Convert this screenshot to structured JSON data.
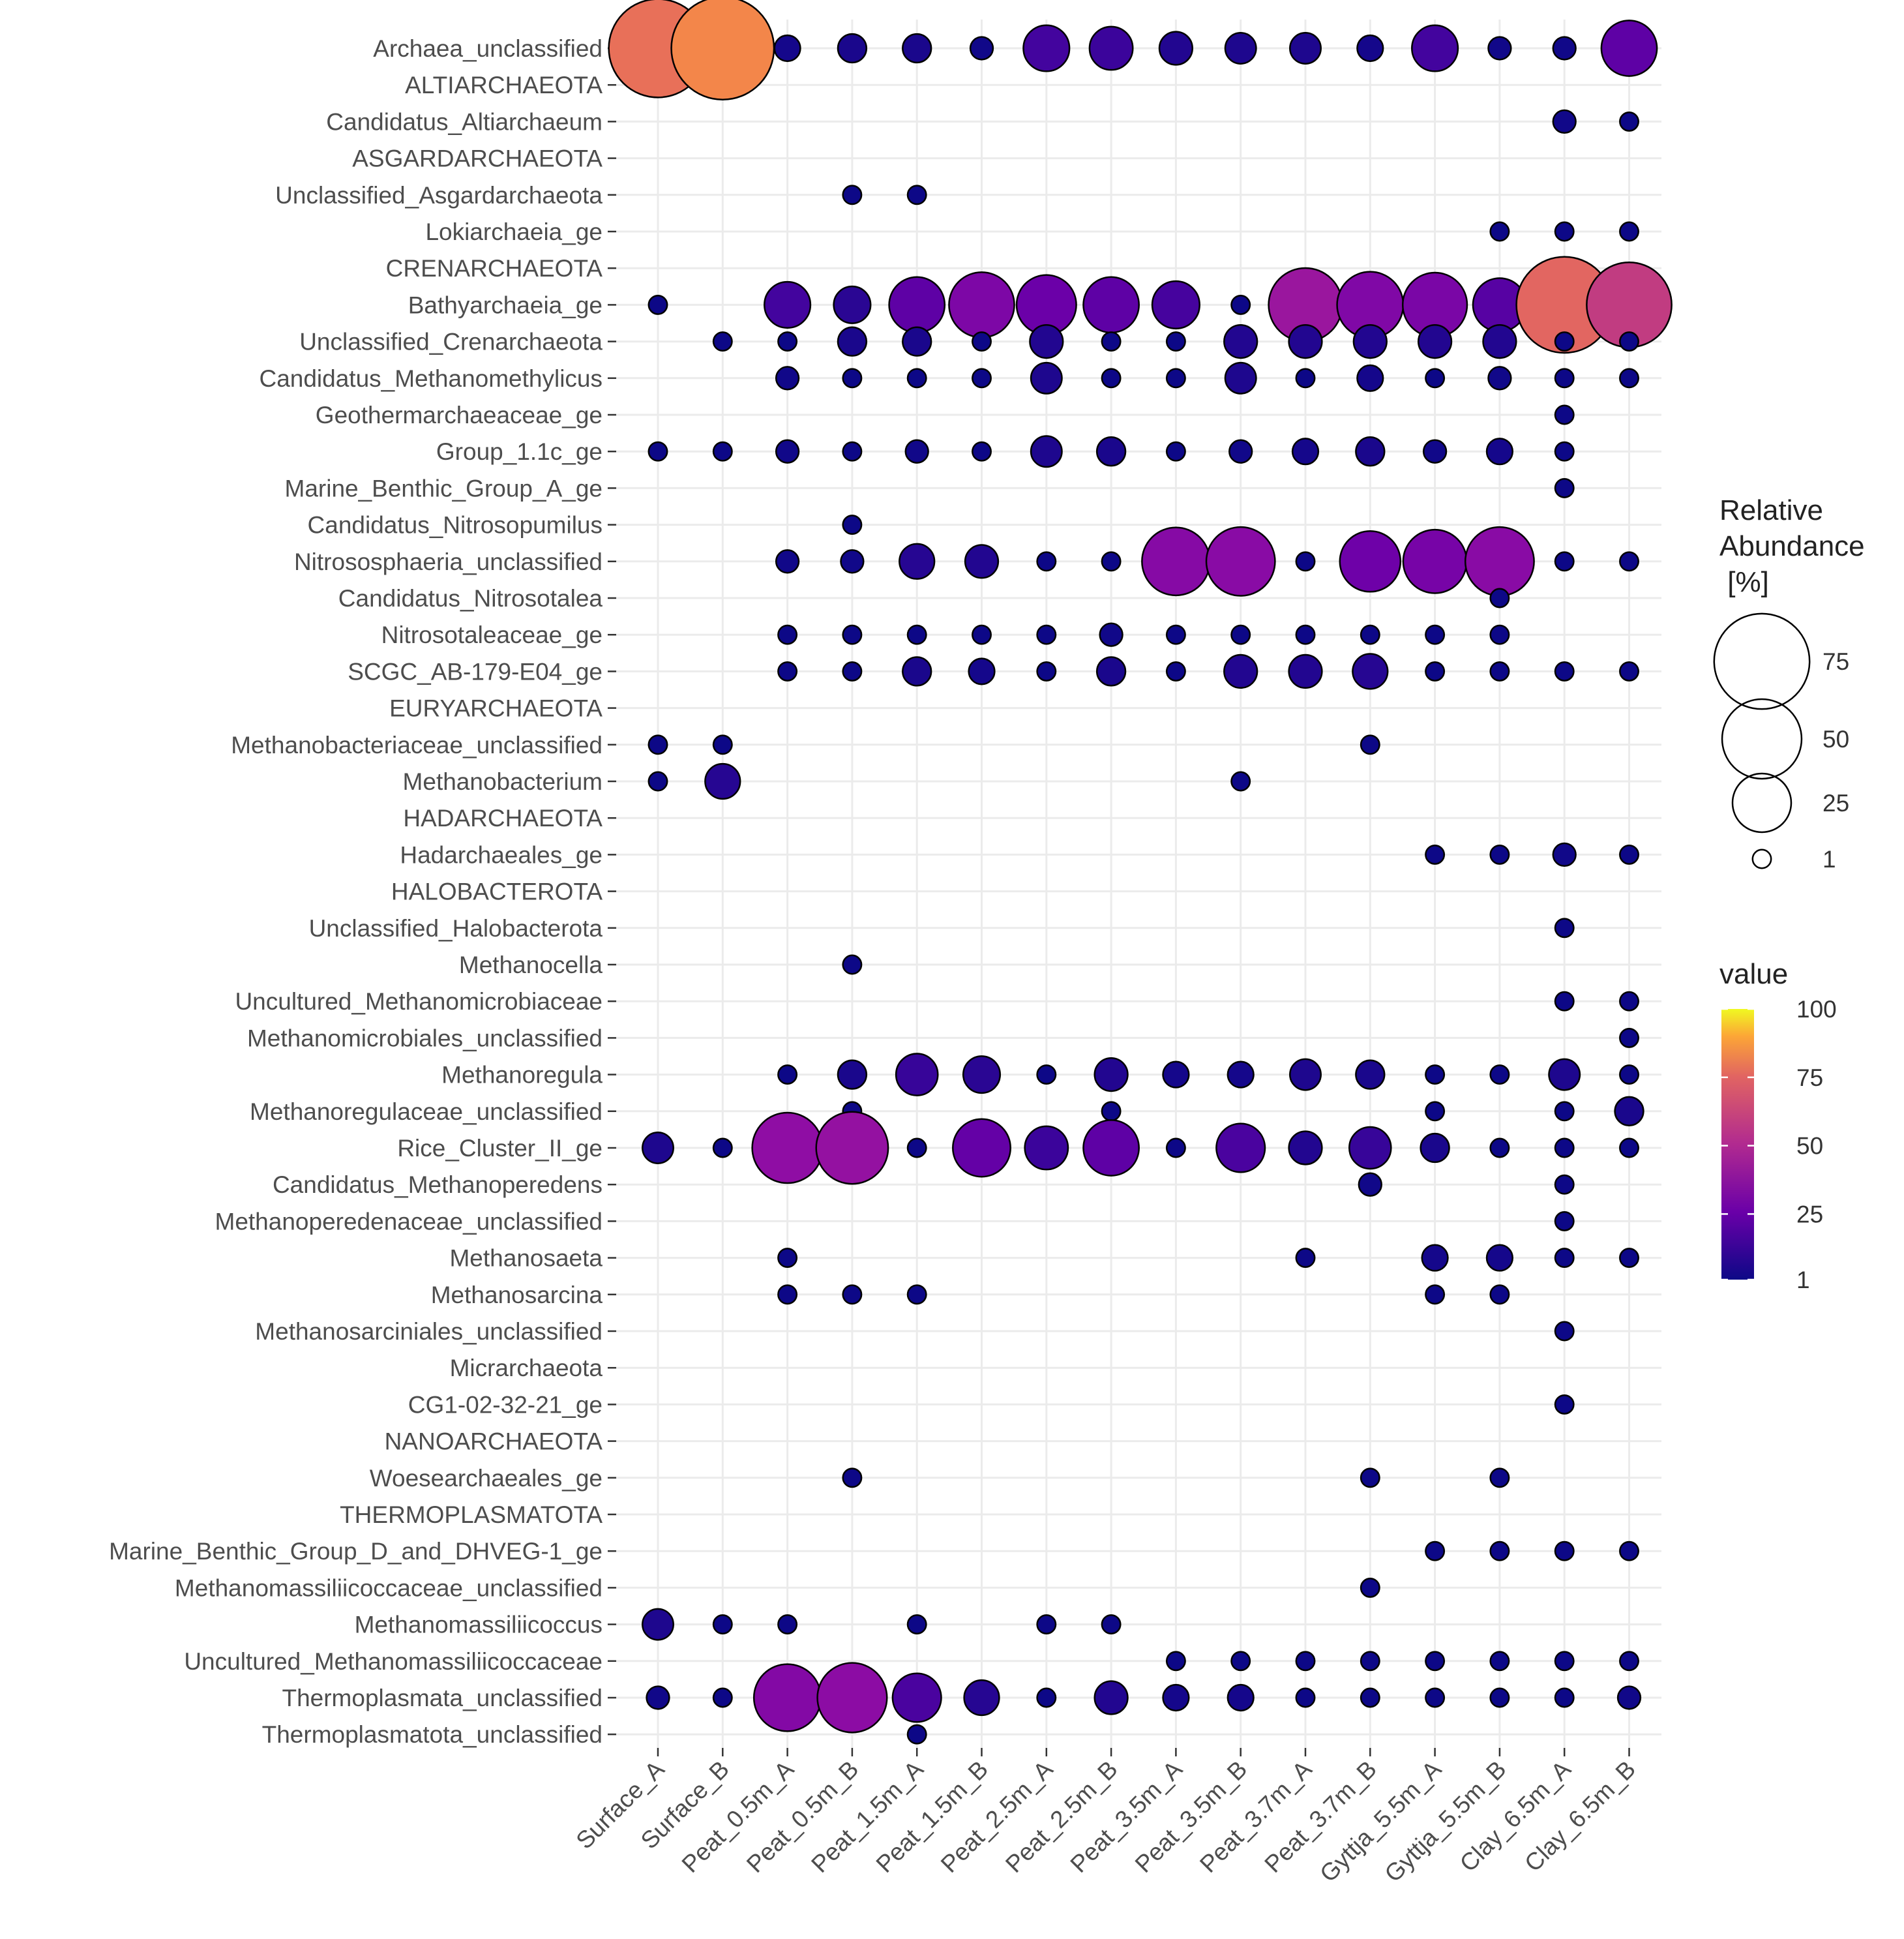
{
  "chart_data": {
    "type": "scatter",
    "subtype": "bubble",
    "x_categories": [
      "Surface_A",
      "Surface_B",
      "Peat_0.5m_A",
      "Peat_0.5m_B",
      "Peat_1.5m_A",
      "Peat_1.5m_B",
      "Peat_2.5m_A",
      "Peat_2.5m_B",
      "Peat_3.5m_A",
      "Peat_3.5m_B",
      "Peat_3.7m_A",
      "Peat_3.7m_B",
      "Gyttja_5.5m_A",
      "Gyttja_5.5m_B",
      "Clay_6.5m_A",
      "Clay_6.5m_B"
    ],
    "y_categories": [
      "Archaea_unclassified",
      "ALTIARCHAEOTA",
      "Candidatus_Altiarchaeum",
      "ASGARDARCHAEOTA",
      "Unclassified_Asgardarchaeota",
      "Lokiarchaeia_ge",
      "CRENARCHAEOTA",
      "Bathyarchaeia_ge",
      "Unclassified_Crenarchaeota",
      "Candidatus_Methanomethylicus",
      "Geothermarchaeaceae_ge",
      "Group_1.1c_ge",
      "Marine_Benthic_Group_A_ge",
      "Candidatus_Nitrosopumilus",
      "Nitrososphaeria_unclassified",
      "Candidatus_Nitrosotalea",
      "Nitrosotaleaceae_ge",
      "SCGC_AB-179-E04_ge",
      "EURYARCHAEOTA",
      "Methanobacteriaceae_unclassified",
      "Methanobacterium",
      "HADARCHAEOTA",
      "Hadarchaeales_ge",
      "HALOBACTEROTA",
      "Unclassified_Halobacterota",
      "Methanocella",
      "Uncultured_Methanomicrobiaceae",
      "Methanomicrobiales_unclassified",
      "Methanoregula",
      "Methanoregulaceae_unclassified",
      "Rice_Cluster_II_ge",
      "Candidatus_Methanoperedens",
      "Methanoperedenaceae_unclassified",
      "Methanosaeta",
      "Methanosarcina",
      "Methanosarciniales_unclassified",
      "Micrarchaeota",
      "CG1-02-32-21_ge",
      "NANOARCHAEOTA",
      "Woesearchaeales_ge",
      "THERMOPLASMATOTA",
      "Marine_Benthic_Group_D_and_DHVEG-1_ge",
      "Methanomassiliicoccaceae_unclassified",
      "Methanomassiliicoccus",
      "Uncultured_Methanomassiliicoccaceae",
      "Thermoplasmata_unclassified",
      "Thermoplasmatota_unclassified"
    ],
    "points": [
      [
        "Archaea_unclassified",
        [
          [
            0,
            80
          ],
          [
            1,
            88
          ],
          [
            2,
            3
          ],
          [
            3,
            4
          ],
          [
            4,
            4
          ],
          [
            5,
            2
          ],
          [
            6,
            14
          ],
          [
            7,
            12
          ],
          [
            8,
            6
          ],
          [
            9,
            5
          ],
          [
            10,
            5
          ],
          [
            11,
            3
          ],
          [
            12,
            14
          ],
          [
            13,
            2
          ],
          [
            14,
            2
          ],
          [
            15,
            22
          ]
        ]
      ],
      [
        "Candidatus_Altiarchaeum",
        [
          [
            14,
            2
          ],
          [
            15,
            1
          ]
        ]
      ],
      [
        "Unclassified_Asgardarchaeota",
        [
          [
            3,
            1
          ],
          [
            4,
            1
          ]
        ]
      ],
      [
        "Lokiarchaeia_ge",
        [
          [
            13,
            1
          ],
          [
            14,
            1
          ],
          [
            15,
            1
          ]
        ]
      ],
      [
        "Bathyarchaeia_ge",
        [
          [
            0,
            1
          ],
          [
            2,
            14
          ],
          [
            3,
            8
          ],
          [
            4,
            22
          ],
          [
            5,
            32
          ],
          [
            6,
            26
          ],
          [
            7,
            22
          ],
          [
            8,
            15
          ],
          [
            9,
            1
          ],
          [
            10,
            42
          ],
          [
            11,
            33
          ],
          [
            12,
            31
          ],
          [
            13,
            20
          ],
          [
            14,
            76
          ],
          [
            15,
            58
          ]
        ]
      ],
      [
        "Unclassified_Crenarchaeota",
        [
          [
            1,
            1
          ],
          [
            2,
            1
          ],
          [
            3,
            4
          ],
          [
            4,
            4
          ],
          [
            5,
            1
          ],
          [
            6,
            6
          ],
          [
            7,
            1
          ],
          [
            8,
            1
          ],
          [
            9,
            6
          ],
          [
            10,
            6
          ],
          [
            11,
            6
          ],
          [
            12,
            6
          ],
          [
            13,
            6
          ],
          [
            14,
            1
          ],
          [
            15,
            1
          ]
        ]
      ],
      [
        "Candidatus_Methanomethylicus",
        [
          [
            2,
            2
          ],
          [
            3,
            1
          ],
          [
            4,
            1
          ],
          [
            5,
            1
          ],
          [
            6,
            5
          ],
          [
            7,
            1
          ],
          [
            8,
            1
          ],
          [
            9,
            5
          ],
          [
            10,
            1
          ],
          [
            11,
            3
          ],
          [
            12,
            1
          ],
          [
            13,
            2
          ],
          [
            14,
            1
          ],
          [
            15,
            1
          ]
        ]
      ],
      [
        "Geothermarchaeaceae_ge",
        [
          [
            14,
            1
          ]
        ]
      ],
      [
        "Group_1.1c_ge",
        [
          [
            0,
            1
          ],
          [
            1,
            1
          ],
          [
            2,
            2
          ],
          [
            3,
            1
          ],
          [
            4,
            2
          ],
          [
            5,
            1
          ],
          [
            6,
            5
          ],
          [
            7,
            4
          ],
          [
            8,
            1
          ],
          [
            9,
            2
          ],
          [
            10,
            3
          ],
          [
            11,
            4
          ],
          [
            12,
            2
          ],
          [
            13,
            3
          ],
          [
            14,
            1
          ]
        ]
      ],
      [
        "Marine_Benthic_Group_A_ge",
        [
          [
            14,
            1
          ]
        ]
      ],
      [
        "Candidatus_Nitrosopumilus",
        [
          [
            3,
            1
          ]
        ]
      ],
      [
        "Nitrososphaeria_unclassified",
        [
          [
            2,
            2
          ],
          [
            3,
            2
          ],
          [
            4,
            7
          ],
          [
            5,
            6
          ],
          [
            6,
            1
          ],
          [
            7,
            1
          ],
          [
            8,
            35
          ],
          [
            9,
            36
          ],
          [
            10,
            1
          ],
          [
            11,
            27
          ],
          [
            12,
            30
          ],
          [
            13,
            36
          ],
          [
            14,
            1
          ],
          [
            15,
            1
          ]
        ]
      ],
      [
        "Candidatus_Nitrosotalea",
        [
          [
            13,
            1
          ]
        ]
      ],
      [
        "Nitrosotaleaceae_ge",
        [
          [
            2,
            1
          ],
          [
            3,
            1
          ],
          [
            4,
            1
          ],
          [
            5,
            1
          ],
          [
            6,
            1
          ],
          [
            7,
            2
          ],
          [
            8,
            1
          ],
          [
            9,
            1
          ],
          [
            10,
            1
          ],
          [
            11,
            1
          ],
          [
            12,
            1
          ],
          [
            13,
            1
          ]
        ]
      ],
      [
        "SCGC_AB-179-E04_ge",
        [
          [
            2,
            1
          ],
          [
            3,
            1
          ],
          [
            4,
            4
          ],
          [
            5,
            3
          ],
          [
            6,
            1
          ],
          [
            7,
            4
          ],
          [
            8,
            1
          ],
          [
            9,
            6
          ],
          [
            10,
            6
          ],
          [
            11,
            7
          ],
          [
            12,
            1
          ],
          [
            13,
            1
          ],
          [
            14,
            1
          ],
          [
            15,
            1
          ]
        ]
      ],
      [
        "Methanobacteriaceae_unclassified",
        [
          [
            0,
            1
          ],
          [
            1,
            1
          ],
          [
            11,
            1
          ]
        ]
      ],
      [
        "Methanobacterium",
        [
          [
            0,
            1
          ],
          [
            1,
            7
          ],
          [
            9,
            1
          ]
        ]
      ],
      [
        "Hadarchaeales_ge",
        [
          [
            12,
            1
          ],
          [
            13,
            1
          ],
          [
            14,
            2
          ],
          [
            15,
            1
          ]
        ]
      ],
      [
        "Unclassified_Halobacterota",
        [
          [
            14,
            1
          ]
        ]
      ],
      [
        "Methanocella",
        [
          [
            3,
            1
          ]
        ]
      ],
      [
        "Uncultured_Methanomicrobiaceae",
        [
          [
            14,
            1
          ],
          [
            15,
            1
          ]
        ]
      ],
      [
        "Methanomicrobiales_unclassified",
        [
          [
            15,
            1
          ]
        ]
      ],
      [
        "Methanoregula",
        [
          [
            2,
            1
          ],
          [
            3,
            4
          ],
          [
            4,
            11
          ],
          [
            5,
            8
          ],
          [
            6,
            1
          ],
          [
            7,
            6
          ],
          [
            8,
            3
          ],
          [
            9,
            3
          ],
          [
            10,
            5
          ],
          [
            11,
            4
          ],
          [
            12,
            1
          ],
          [
            13,
            1
          ],
          [
            14,
            5
          ],
          [
            15,
            1
          ]
        ]
      ],
      [
        "Methanoregulaceae_unclassified",
        [
          [
            3,
            1
          ],
          [
            7,
            1
          ],
          [
            12,
            1
          ],
          [
            14,
            1
          ],
          [
            15,
            4
          ]
        ]
      ],
      [
        "Rice_Cluster_II_ge",
        [
          [
            0,
            5
          ],
          [
            1,
            1
          ],
          [
            2,
            38
          ],
          [
            3,
            40
          ],
          [
            4,
            1
          ],
          [
            5,
            24
          ],
          [
            6,
            12
          ],
          [
            7,
            22
          ],
          [
            8,
            1
          ],
          [
            9,
            16
          ],
          [
            10,
            6
          ],
          [
            11,
            11
          ],
          [
            12,
            4
          ],
          [
            13,
            1
          ],
          [
            14,
            1
          ],
          [
            15,
            1
          ]
        ]
      ],
      [
        "Candidatus_Methanoperedens",
        [
          [
            11,
            2
          ],
          [
            14,
            1
          ]
        ]
      ],
      [
        "Methanoperedenaceae_unclassified",
        [
          [
            14,
            1
          ]
        ]
      ],
      [
        "Methanosaeta",
        [
          [
            2,
            1
          ],
          [
            10,
            1
          ],
          [
            12,
            3
          ],
          [
            13,
            3
          ],
          [
            14,
            1
          ],
          [
            15,
            1
          ]
        ]
      ],
      [
        "Methanosarcina",
        [
          [
            2,
            1
          ],
          [
            3,
            1
          ],
          [
            4,
            1
          ],
          [
            12,
            1
          ],
          [
            13,
            1
          ]
        ]
      ],
      [
        "Methanosarciniales_unclassified",
        [
          [
            14,
            1
          ]
        ]
      ],
      [
        "CG1-02-32-21_ge",
        [
          [
            14,
            1
          ]
        ]
      ],
      [
        "Woesearchaeales_ge",
        [
          [
            3,
            1
          ],
          [
            11,
            1
          ],
          [
            13,
            1
          ]
        ]
      ],
      [
        "Marine_Benthic_Group_D_and_DHVEG-1_ge",
        [
          [
            12,
            1
          ],
          [
            13,
            1
          ],
          [
            14,
            1
          ],
          [
            15,
            1
          ]
        ]
      ],
      [
        "Methanomassiliicoccaceae_unclassified",
        [
          [
            11,
            1
          ]
        ]
      ],
      [
        "Methanomassiliicoccus",
        [
          [
            0,
            5
          ],
          [
            1,
            1
          ],
          [
            2,
            1
          ],
          [
            4,
            1
          ],
          [
            6,
            1
          ],
          [
            7,
            1
          ]
        ]
      ],
      [
        "Uncultured_Methanomassiliicoccaceae",
        [
          [
            8,
            1
          ],
          [
            9,
            1
          ],
          [
            10,
            1
          ],
          [
            11,
            1
          ],
          [
            12,
            1
          ],
          [
            13,
            1
          ],
          [
            14,
            1
          ],
          [
            15,
            1
          ]
        ]
      ],
      [
        "Thermoplasmata_unclassified",
        [
          [
            0,
            2
          ],
          [
            1,
            1
          ],
          [
            2,
            34
          ],
          [
            3,
            37
          ],
          [
            4,
            16
          ],
          [
            5,
            7
          ],
          [
            6,
            1
          ],
          [
            7,
            6
          ],
          [
            8,
            3
          ],
          [
            9,
            3
          ],
          [
            10,
            1
          ],
          [
            11,
            1
          ],
          [
            12,
            1
          ],
          [
            13,
            1
          ],
          [
            14,
            1
          ],
          [
            15,
            2
          ]
        ]
      ],
      [
        "Thermoplasmatota_unclassified",
        [
          [
            4,
            1
          ]
        ]
      ]
    ],
    "size_legend": {
      "title_lines": [
        "Relative",
        "Abundance",
        " [%]"
      ],
      "breaks": [
        75,
        50,
        25,
        1
      ]
    },
    "color_legend": {
      "title": "value",
      "breaks": [
        100,
        75,
        50,
        25,
        1
      ],
      "range": [
        1,
        100
      ],
      "palette": "plasma"
    },
    "grid": true
  }
}
